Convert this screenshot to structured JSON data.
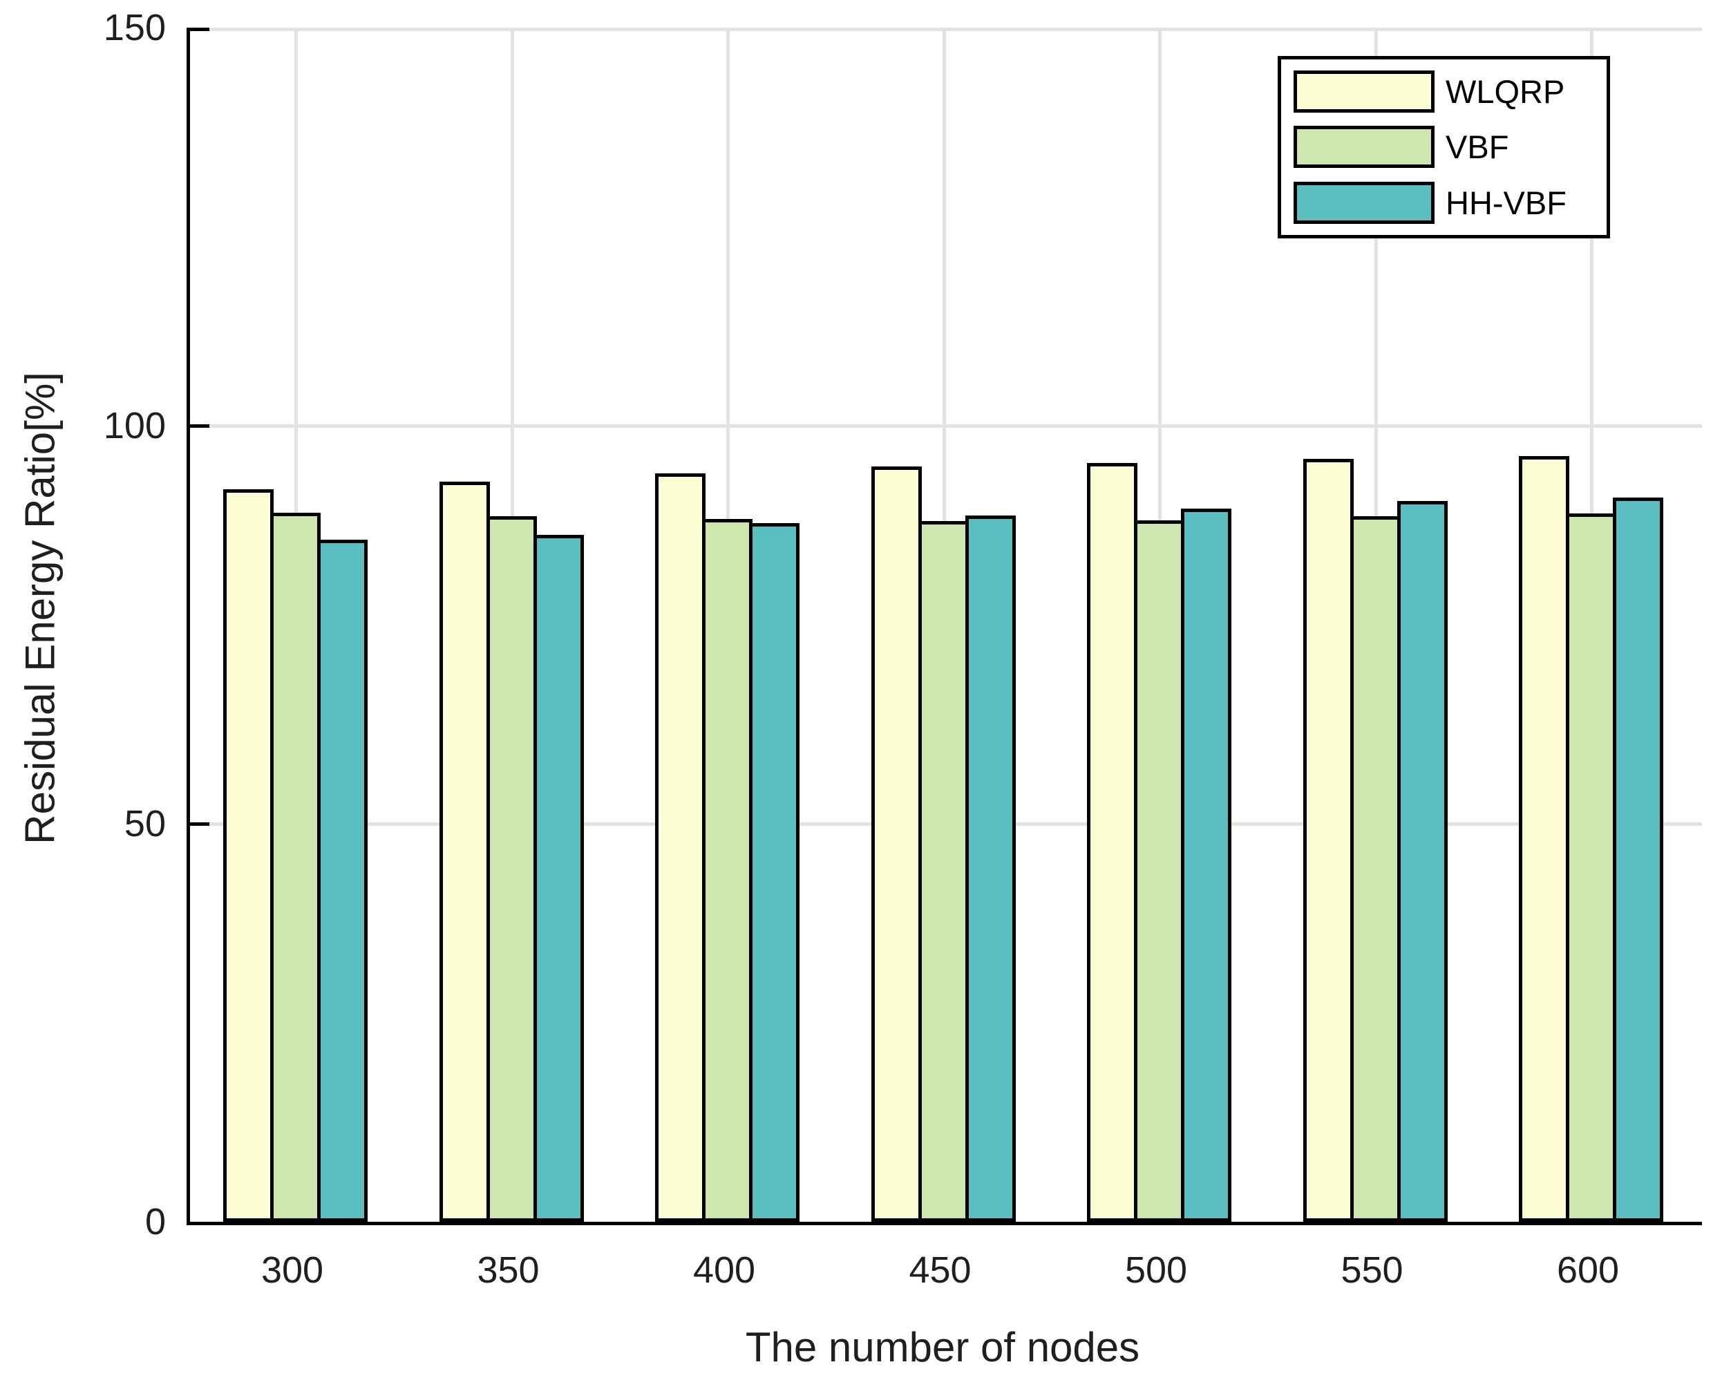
{
  "chart_data": {
    "type": "bar",
    "title": "",
    "xlabel": "The number of nodes",
    "ylabel": "Residual Energy Ratio[%]",
    "categories": [
      "300",
      "350",
      "400",
      "450",
      "500",
      "550",
      "600"
    ],
    "series": [
      {
        "name": "WLQRP",
        "color": "#FCFCD5",
        "values": [
          92.0,
          93.0,
          94.0,
          94.9,
          95.3,
          95.8,
          96.2
        ]
      },
      {
        "name": "VBF",
        "color": "#CEE7B1",
        "values": [
          89.1,
          88.6,
          88.3,
          88.0,
          88.1,
          88.6,
          89.0
        ]
      },
      {
        "name": "HH-VBF",
        "color": "#5ABDC0",
        "values": [
          85.7,
          86.3,
          87.8,
          88.7,
          89.6,
          90.5,
          91.0
        ]
      }
    ],
    "ylim": [
      0,
      150
    ],
    "yticks": [
      0,
      50,
      100,
      150
    ],
    "ytick_labels": [
      "0",
      "50",
      "100",
      "150"
    ],
    "grid": true,
    "legend_position": "top-right",
    "bar_edge_color": "#000000",
    "grid_color": "#E2E2E2",
    "axis_color": "#000000",
    "text_color": "#1F1F1F"
  }
}
